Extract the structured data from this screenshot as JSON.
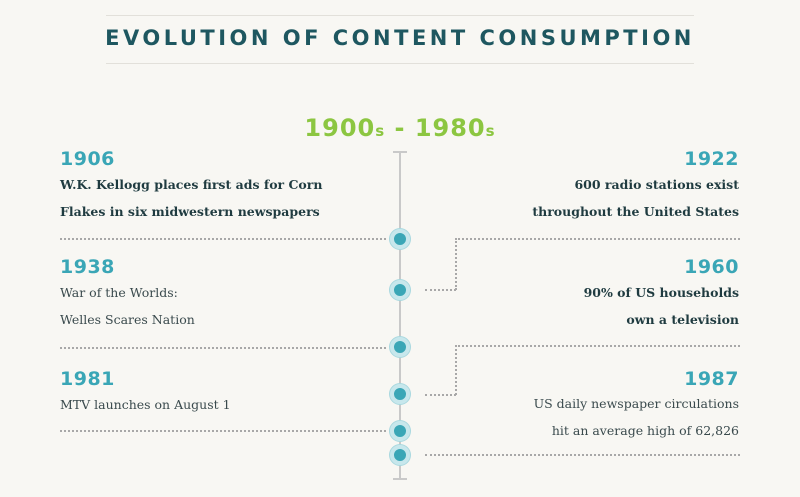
{
  "header": {
    "title": "EVOLUTION OF CONTENT CONSUMPTION"
  },
  "era": {
    "start": "1900",
    "start_suffix": "s",
    "separator": " - ",
    "end": "1980",
    "end_suffix": "s"
  },
  "events_left": [
    {
      "year": "1906",
      "line1": "W.K. Kellogg places first ads for Corn",
      "line2": "Flakes in six midwestern newspapers"
    },
    {
      "year": "1938",
      "line1": "War of the Worlds:",
      "line2": "Welles Scares Nation"
    },
    {
      "year": "1981",
      "line1": "MTV launches on August 1",
      "line2": ""
    }
  ],
  "events_right": [
    {
      "year": "1922",
      "line1": "600 radio stations exist",
      "line2": "throughout the United States"
    },
    {
      "year": "1960",
      "line1": "90% of US households",
      "line2": "own a television"
    },
    {
      "year": "1987",
      "line1": "US daily newspaper circulations",
      "line2": "hit an average high of 62,826"
    }
  ],
  "colors": {
    "title": "#1e5760",
    "era": "#8cc641",
    "year": "#3aa6b6",
    "dot": "#3aa6b6",
    "background": "#f8f7f3"
  }
}
